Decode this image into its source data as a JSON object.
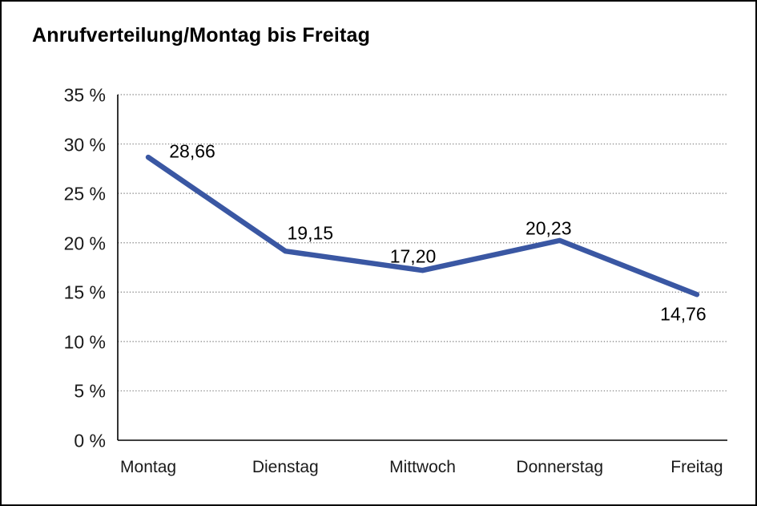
{
  "chart_data": {
    "type": "line",
    "title": "Anrufverteilung/Montag bis Freitag",
    "categories": [
      "Montag",
      "Dienstag",
      "Mittwoch",
      "Donnerstag",
      "Freitag"
    ],
    "values": [
      28.66,
      19.15,
      17.2,
      20.23,
      14.76
    ],
    "value_labels": [
      "28,66",
      "19,15",
      "17,20",
      "20,23",
      "14,76"
    ],
    "series_name": "Anrufverteilung",
    "xlabel": "",
    "ylabel": "",
    "ylim": [
      0,
      35
    ],
    "y_tick_step": 5,
    "y_ticks": [
      {
        "value": 0,
        "label": "0 %"
      },
      {
        "value": 5,
        "label": "5 %"
      },
      {
        "value": 10,
        "label": "10 %"
      },
      {
        "value": 15,
        "label": "15 %"
      },
      {
        "value": 20,
        "label": "20 %"
      },
      {
        "value": 25,
        "label": "25 %"
      },
      {
        "value": 30,
        "label": "30 %"
      },
      {
        "value": 35,
        "label": "35 %"
      }
    ],
    "grid": "horizontal-dotted",
    "legend": "none",
    "line_color": "#3a57a3",
    "axis_color": "#000000",
    "gridline_color": "#7d7d7d",
    "text_color": "#1a1a1a",
    "background_color": "#ffffff",
    "frame_border_color": "#000000"
  }
}
